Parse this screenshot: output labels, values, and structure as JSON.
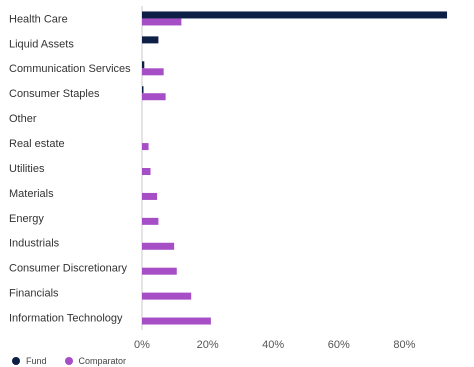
{
  "chart_data": {
    "type": "bar",
    "orientation": "horizontal",
    "categories": [
      "Health Care",
      "Liquid Assets",
      "Communication Services",
      "Consumer Staples",
      "Other",
      "Real estate",
      "Utilities",
      "Materials",
      "Energy",
      "Industrials",
      "Consumer Discretionary",
      "Financials",
      "Information Technology"
    ],
    "series": [
      {
        "name": "Fund",
        "color": "#0d1f45",
        "values": [
          93,
          5,
          0.7,
          0.4,
          0,
          0,
          0,
          0,
          0,
          0,
          0,
          0,
          0
        ]
      },
      {
        "name": "Comparator",
        "color": "#a64ec6",
        "values": [
          12,
          0,
          6.6,
          7.2,
          0,
          2,
          2.6,
          4.6,
          5,
          9.8,
          10.6,
          15,
          21
        ]
      }
    ],
    "xticks": [
      "0%",
      "20%",
      "40%",
      "60%",
      "80%"
    ],
    "xlim": [
      0,
      100
    ],
    "grid": true,
    "legend_position": "bottom-left"
  }
}
